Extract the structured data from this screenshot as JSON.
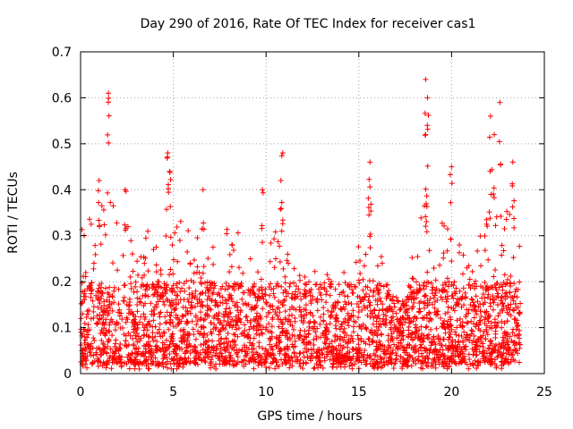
{
  "chart_data": {
    "type": "scatter",
    "title": "Day 290 of 2016, Rate Of TEC Index for receiver cas1",
    "xlabel": "GPS time / hours",
    "ylabel": "ROTI / TECUs",
    "xlim": [
      0,
      25
    ],
    "ylim": [
      0,
      0.7
    ],
    "xticks": [
      0,
      5,
      10,
      15,
      20,
      25
    ],
    "xtick_labels": [
      "0",
      "5",
      "10",
      "15",
      "20",
      "25"
    ],
    "yticks": [
      0,
      0.1,
      0.2,
      0.3,
      0.4,
      0.5,
      0.6,
      0.7
    ],
    "ytick_labels": [
      "0",
      "0.1",
      "0.2",
      "0.3",
      "0.4",
      "0.5",
      "0.6",
      "0.7"
    ],
    "grid": true,
    "marker": "+",
    "color": "#ff0000",
    "series": [
      {
        "name": "ROTI",
        "x_range": [
          0,
          23.7
        ],
        "typical_range": [
          0.02,
          0.2
        ],
        "peaks": [
          {
            "x": 1.5,
            "y": 0.61
          },
          {
            "x": 1.0,
            "y": 0.42
          },
          {
            "x": 2.4,
            "y": 0.4
          },
          {
            "x": 4.7,
            "y": 0.48
          },
          {
            "x": 4.8,
            "y": 0.44
          },
          {
            "x": 6.6,
            "y": 0.4
          },
          {
            "x": 9.8,
            "y": 0.4
          },
          {
            "x": 10.9,
            "y": 0.48
          },
          {
            "x": 10.8,
            "y": 0.42
          },
          {
            "x": 15.6,
            "y": 0.46
          },
          {
            "x": 18.6,
            "y": 0.64
          },
          {
            "x": 18.7,
            "y": 0.6
          },
          {
            "x": 18.6,
            "y": 0.52
          },
          {
            "x": 20.0,
            "y": 0.45
          },
          {
            "x": 22.1,
            "y": 0.56
          },
          {
            "x": 22.3,
            "y": 0.52
          },
          {
            "x": 22.6,
            "y": 0.59
          },
          {
            "x": 23.3,
            "y": 0.46
          }
        ],
        "envelope": [
          {
            "x": 0,
            "y": 0.33
          },
          {
            "x": 1.5,
            "y": 0.38
          },
          {
            "x": 3,
            "y": 0.3
          },
          {
            "x": 4.7,
            "y": 0.4
          },
          {
            "x": 6,
            "y": 0.3
          },
          {
            "x": 8,
            "y": 0.33
          },
          {
            "x": 10,
            "y": 0.33
          },
          {
            "x": 12,
            "y": 0.25
          },
          {
            "x": 14,
            "y": 0.26
          },
          {
            "x": 15.5,
            "y": 0.4
          },
          {
            "x": 16.5,
            "y": 0.2
          },
          {
            "x": 17.3,
            "y": 0.15
          },
          {
            "x": 18.5,
            "y": 0.4
          },
          {
            "x": 19.5,
            "y": 0.35
          },
          {
            "x": 21,
            "y": 0.25
          },
          {
            "x": 22.5,
            "y": 0.4
          },
          {
            "x": 23.7,
            "y": 0.3
          }
        ]
      }
    ]
  }
}
